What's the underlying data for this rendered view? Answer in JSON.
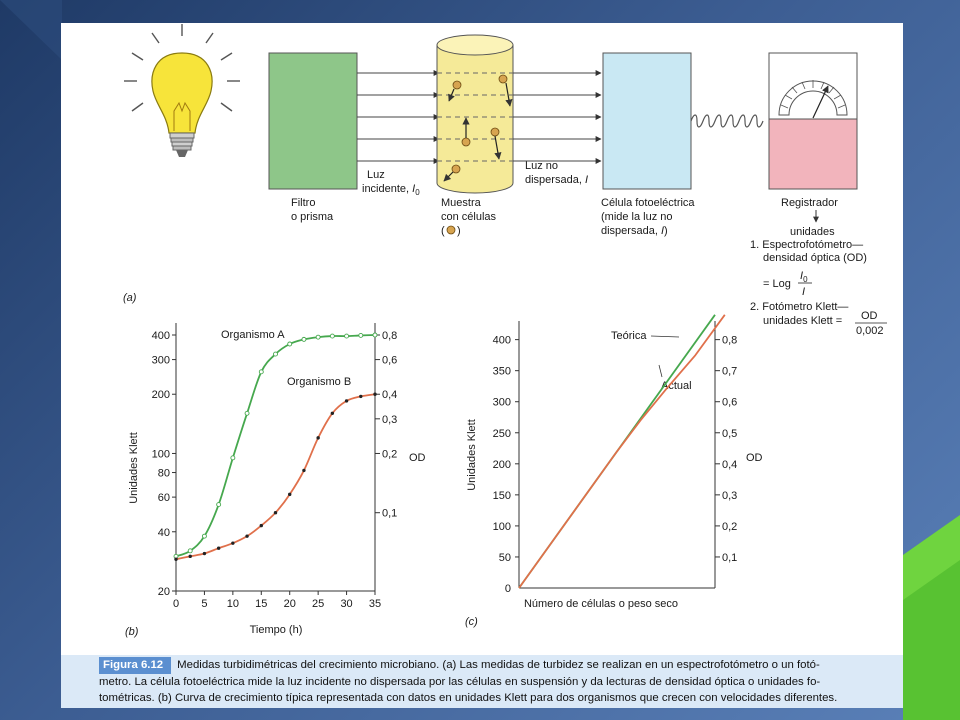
{
  "caption": {
    "figure_label": "Figura 6.12",
    "line1": "Medidas turbidimétricas del crecimiento microbiano. (a) Las medidas de turbidez se realizan en un espectrofotómetro o un fotó-",
    "line2": "metro. La célula fotoeléctrica mide la luz incidente no dispersada por las células en suspensión y da lecturas de densidad óptica o unidades fo-",
    "line3": "tométricas. (b) Curva de crecimiento típica representada con datos en unidades Klett para dos organismos que crecen con velocidades diferentes."
  },
  "diagram": {
    "panel_label": "(a)",
    "filter_label_1": "Filtro",
    "filter_label_2": "o prisma",
    "incident_label_1": "Luz",
    "incident_label_2": "incidente, ",
    "incident_symbol": "I",
    "incident_sub": "0",
    "sample_label_1": "Muestra",
    "sample_label_2": "con células",
    "sample_label_3_open": "(",
    "sample_label_3_close": ")",
    "undispersed_label_1": "Luz no",
    "undispersed_label_2": "dispersada, ",
    "undispersed_symbol": "I",
    "cell_label_1": "Célula fotoeléctrica",
    "cell_label_2": "(mide la luz no",
    "cell_label_3": "dispersada, ",
    "cell_label_3_symbol": "I",
    "cell_label_3_close": ")",
    "recorder_label": "Registrador",
    "units_label": "unidades",
    "item1_line1": "1. Espectrofotómetro—",
    "item1_line2": "densidad óptica (OD)",
    "item1_eq": "= Log",
    "item1_num": "I",
    "item1_num_sub": "0",
    "item1_den": "I",
    "item2_line1": "2. Fotómetro Klett—",
    "item2_line2": "unidades Klett =",
    "item2_num": "OD",
    "item2_den": "0,002",
    "colors": {
      "filter": "#8ec689",
      "sample": "#f5ea98",
      "photocell": "#c9e8f3",
      "recorder": "#f2b4bc",
      "bulb": "#f7e43a"
    }
  },
  "chart_data": [
    {
      "type": "line",
      "panel_label": "(b)",
      "xlabel": "Tiempo (h)",
      "ylabel": "Unidades Klett",
      "y2label": "OD",
      "x_ticks": [
        0,
        5,
        10,
        15,
        20,
        25,
        30,
        35
      ],
      "xlim": [
        0,
        35
      ],
      "y_scale": "log",
      "ylim": [
        20,
        400
      ],
      "y_ticks": [
        20,
        40,
        60,
        80,
        100,
        200,
        300,
        400
      ],
      "y_tick_labels": [
        "20",
        "40",
        "60",
        "80",
        "100",
        "200",
        "300",
        "400"
      ],
      "y2_ticks": [
        0.1,
        0.2,
        0.3,
        0.4,
        0.6,
        0.8
      ],
      "y2_tick_labels": [
        "0,1",
        "0,2",
        "0,3",
        "0,4",
        "0,6",
        "0,8"
      ],
      "series": [
        {
          "name": "Organismo A",
          "color": "#46a84e",
          "marker": "open-circle",
          "x": [
            0,
            2.5,
            5,
            7.5,
            10,
            12.5,
            15,
            17.5,
            20,
            22.5,
            25,
            27.5,
            30,
            32.5,
            35
          ],
          "y": [
            30,
            32,
            38,
            55,
            95,
            160,
            260,
            320,
            360,
            380,
            390,
            395,
            395,
            398,
            400
          ]
        },
        {
          "name": "Organismo B",
          "color": "#e0704b",
          "marker": "dot",
          "x": [
            0,
            2.5,
            5,
            7.5,
            10,
            12.5,
            15,
            17.5,
            20,
            22.5,
            25,
            27.5,
            30,
            32.5,
            35
          ],
          "y": [
            29,
            30,
            31,
            33,
            35,
            38,
            43,
            50,
            62,
            82,
            120,
            160,
            185,
            195,
            200
          ]
        }
      ]
    },
    {
      "type": "line",
      "panel_label": "(c)",
      "xlabel": "Número de células o peso seco",
      "ylabel": "Unidades Klett",
      "y2label": "OD",
      "ylim": [
        0,
        430
      ],
      "y_ticks": [
        0,
        50,
        100,
        150,
        200,
        250,
        300,
        350,
        400
      ],
      "y_tick_labels": [
        "0",
        "50",
        "100",
        "150",
        "200",
        "250",
        "300",
        "350",
        "400"
      ],
      "y2_ticks": [
        0.1,
        0.2,
        0.3,
        0.4,
        0.5,
        0.6,
        0.7,
        0.8
      ],
      "y2_tick_labels": [
        "0,1",
        "0,2",
        "0,3",
        "0,4",
        "0,5",
        "0,6",
        "0,7",
        "0,8"
      ],
      "xlim": [
        0,
        1
      ],
      "series": [
        {
          "name": "Teórica",
          "color": "#46a84e",
          "x": [
            0,
            1
          ],
          "y": [
            0,
            440
          ]
        },
        {
          "name": "Actual",
          "color": "#e0704b",
          "x": [
            0,
            0.5,
            0.62,
            0.75,
            0.9,
            1.05
          ],
          "y": [
            0,
            220,
            270,
            320,
            375,
            440
          ]
        }
      ]
    }
  ]
}
